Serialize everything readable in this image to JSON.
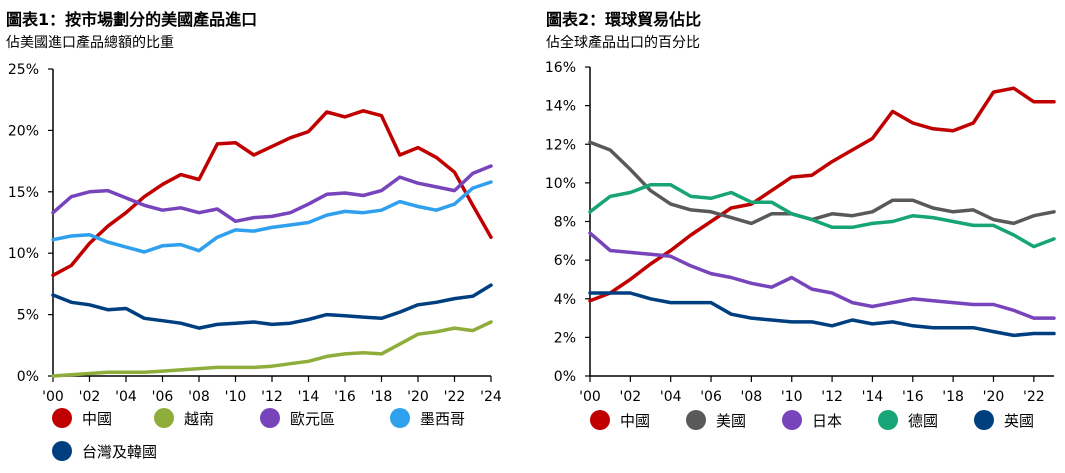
{
  "chart_data": [
    {
      "type": "line",
      "title": "圖表1：按市場劃分的美國產品進口",
      "subtitle": "佔美國進口產品總額的比重",
      "x": [
        2000,
        2001,
        2002,
        2003,
        2004,
        2005,
        2006,
        2007,
        2008,
        2009,
        2010,
        2011,
        2012,
        2013,
        2014,
        2015,
        2016,
        2017,
        2018,
        2019,
        2020,
        2021,
        2022,
        2023,
        2024
      ],
      "xticks": [
        2000,
        2002,
        2004,
        2006,
        2008,
        2010,
        2012,
        2014,
        2016,
        2018,
        2020,
        2022,
        2024
      ],
      "xtick_labels": [
        "'00",
        "'02",
        "'04",
        "'06",
        "'08",
        "'10",
        "'12",
        "'14",
        "'16",
        "'18",
        "'20",
        "'22",
        "'24"
      ],
      "ylim": [
        0,
        25
      ],
      "yticks": [
        0,
        5,
        10,
        15,
        20,
        25
      ],
      "ytick_labels": [
        "0%",
        "5%",
        "10%",
        "15%",
        "20%",
        "25%"
      ],
      "grid": false,
      "legend_position": "bottom",
      "series": [
        {
          "name": "中國",
          "color": "#c00000",
          "values": [
            8.2,
            9.0,
            10.8,
            12.2,
            13.3,
            14.6,
            15.6,
            16.4,
            16.0,
            18.9,
            19.0,
            18.0,
            18.7,
            19.4,
            19.9,
            21.5,
            21.1,
            21.6,
            21.2,
            18.0,
            18.6,
            17.8,
            16.6,
            13.9,
            11.3
          ]
        },
        {
          "name": "越南",
          "color": "#8fad3a",
          "values": [
            0.0,
            0.1,
            0.2,
            0.3,
            0.3,
            0.3,
            0.4,
            0.5,
            0.6,
            0.7,
            0.7,
            0.7,
            0.8,
            1.0,
            1.2,
            1.6,
            1.8,
            1.9,
            1.8,
            2.6,
            3.4,
            3.6,
            3.9,
            3.7,
            4.4
          ]
        },
        {
          "name": "歐元區",
          "color": "#7744bb",
          "values": [
            13.3,
            14.6,
            15.0,
            15.1,
            14.5,
            13.9,
            13.5,
            13.7,
            13.3,
            13.6,
            12.6,
            12.9,
            13.0,
            13.3,
            14.0,
            14.8,
            14.9,
            14.7,
            15.1,
            16.2,
            15.7,
            15.4,
            15.1,
            16.5,
            17.1
          ]
        },
        {
          "name": "墨西哥",
          "color": "#2fa0ee",
          "values": [
            11.1,
            11.4,
            11.5,
            10.9,
            10.5,
            10.1,
            10.6,
            10.7,
            10.2,
            11.3,
            11.9,
            11.8,
            12.1,
            12.3,
            12.5,
            13.1,
            13.4,
            13.3,
            13.5,
            14.2,
            13.8,
            13.5,
            14.0,
            15.3,
            15.8
          ]
        },
        {
          "name": "台灣及韓國",
          "color": "#003f7f",
          "values": [
            6.6,
            6.0,
            5.8,
            5.4,
            5.5,
            4.7,
            4.5,
            4.3,
            3.9,
            4.2,
            4.3,
            4.4,
            4.2,
            4.3,
            4.6,
            5.0,
            4.9,
            4.8,
            4.7,
            5.2,
            5.8,
            6.0,
            6.3,
            6.5,
            7.4
          ]
        }
      ]
    },
    {
      "type": "line",
      "title": "圖表2：環球貿易佔比",
      "subtitle": "佔全球產品出口的百分比",
      "x": [
        2000,
        2001,
        2002,
        2003,
        2004,
        2005,
        2006,
        2007,
        2008,
        2009,
        2010,
        2011,
        2012,
        2013,
        2014,
        2015,
        2016,
        2017,
        2018,
        2019,
        2020,
        2021,
        2022,
        2023
      ],
      "xticks": [
        2000,
        2002,
        2004,
        2006,
        2008,
        2010,
        2012,
        2014,
        2016,
        2018,
        2020,
        2022
      ],
      "xtick_labels": [
        "'00",
        "'02",
        "'04",
        "'06",
        "'08",
        "'10",
        "'12",
        "'14",
        "'16",
        "'18",
        "'20",
        "'22"
      ],
      "ylim": [
        0,
        16
      ],
      "yticks": [
        0,
        2,
        4,
        6,
        8,
        10,
        12,
        14,
        16
      ],
      "ytick_labels": [
        "0%",
        "2%",
        "4%",
        "6%",
        "8%",
        "10%",
        "12%",
        "14%",
        "16%"
      ],
      "grid": false,
      "legend_position": "bottom",
      "series": [
        {
          "name": "中國",
          "color": "#c00000",
          "values": [
            3.9,
            4.3,
            5.0,
            5.8,
            6.5,
            7.3,
            8.0,
            8.7,
            8.9,
            9.6,
            10.3,
            10.4,
            11.1,
            11.7,
            12.3,
            13.7,
            13.1,
            12.8,
            12.7,
            13.1,
            14.7,
            14.9,
            14.2,
            14.2
          ]
        },
        {
          "name": "美國",
          "color": "#595959",
          "values": [
            12.1,
            11.7,
            10.7,
            9.6,
            8.9,
            8.6,
            8.5,
            8.2,
            7.9,
            8.4,
            8.4,
            8.1,
            8.4,
            8.3,
            8.5,
            9.1,
            9.1,
            8.7,
            8.5,
            8.6,
            8.1,
            7.9,
            8.3,
            8.5
          ]
        },
        {
          "name": "日本",
          "color": "#7744bb",
          "values": [
            7.4,
            6.5,
            6.4,
            6.3,
            6.2,
            5.7,
            5.3,
            5.1,
            4.8,
            4.6,
            5.1,
            4.5,
            4.3,
            3.8,
            3.6,
            3.8,
            4.0,
            3.9,
            3.8,
            3.7,
            3.7,
            3.4,
            3.0,
            3.0
          ]
        },
        {
          "name": "德國",
          "color": "#17a577",
          "values": [
            8.5,
            9.3,
            9.5,
            9.9,
            9.9,
            9.3,
            9.2,
            9.5,
            9.0,
            9.0,
            8.4,
            8.1,
            7.7,
            7.7,
            7.9,
            8.0,
            8.3,
            8.2,
            8.0,
            7.8,
            7.8,
            7.3,
            6.7,
            7.1
          ]
        },
        {
          "name": "英國",
          "color": "#003f7f",
          "values": [
            4.3,
            4.3,
            4.3,
            4.0,
            3.8,
            3.8,
            3.8,
            3.2,
            3.0,
            2.9,
            2.8,
            2.8,
            2.6,
            2.9,
            2.7,
            2.8,
            2.6,
            2.5,
            2.5,
            2.5,
            2.3,
            2.1,
            2.2,
            2.2
          ]
        }
      ]
    }
  ]
}
